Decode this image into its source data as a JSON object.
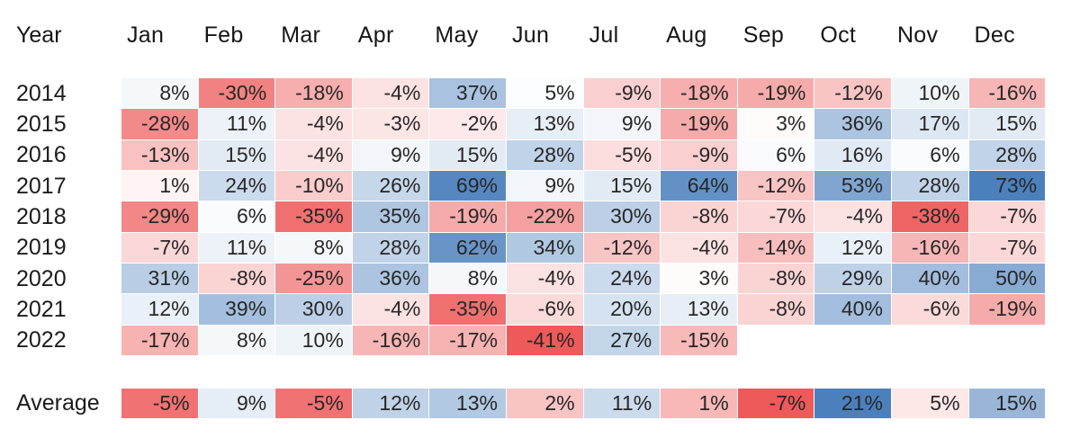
{
  "chart_data": {
    "type": "heatmap",
    "row_header_label": "Year",
    "columns": [
      "Jan",
      "Feb",
      "Mar",
      "Apr",
      "May",
      "Jun",
      "Jul",
      "Aug",
      "Sep",
      "Oct",
      "Nov",
      "Dec"
    ],
    "value_suffix": "%",
    "rows": [
      {
        "label": "2014",
        "values": [
          8,
          -30,
          -18,
          -4,
          37,
          5,
          -9,
          -18,
          -19,
          -12,
          10,
          -16
        ]
      },
      {
        "label": "2015",
        "values": [
          -28,
          11,
          -4,
          -3,
          -2,
          13,
          9,
          -19,
          3,
          36,
          17,
          15
        ]
      },
      {
        "label": "2016",
        "values": [
          -13,
          15,
          -4,
          9,
          15,
          28,
          -5,
          -9,
          6,
          16,
          6,
          28
        ]
      },
      {
        "label": "2017",
        "values": [
          1,
          24,
          -10,
          26,
          69,
          9,
          15,
          64,
          -12,
          53,
          28,
          73
        ]
      },
      {
        "label": "2018",
        "values": [
          -29,
          6,
          -35,
          35,
          -19,
          -22,
          30,
          -8,
          -7,
          -4,
          -38,
          -7
        ]
      },
      {
        "label": "2019",
        "values": [
          -7,
          11,
          8,
          28,
          62,
          34,
          -12,
          -4,
          -14,
          12,
          -16,
          -7
        ]
      },
      {
        "label": "2020",
        "values": [
          31,
          -8,
          -25,
          36,
          8,
          -4,
          24,
          3,
          -8,
          29,
          40,
          50
        ]
      },
      {
        "label": "2021",
        "values": [
          12,
          39,
          30,
          -4,
          -35,
          -6,
          20,
          13,
          -8,
          40,
          -6,
          -19
        ]
      },
      {
        "label": "2022",
        "values": [
          -17,
          8,
          10,
          -16,
          -17,
          -41,
          27,
          -15,
          null,
          null,
          null,
          null
        ]
      }
    ],
    "average_row": {
      "label": "Average",
      "values": [
        -5,
        9,
        -5,
        12,
        13,
        2,
        11,
        1,
        -7,
        21,
        5,
        15
      ]
    },
    "color_scale": {
      "negative_color": "#ee5a5a",
      "positive_color": "#4c80bd",
      "neutral_color": "#ffffff",
      "main": {
        "min": -41,
        "max": 73,
        "center": 4
      },
      "average": {
        "min": -7,
        "max": 21,
        "center": 7
      }
    },
    "layout": {
      "grid": "off",
      "legend": "none",
      "text_color": "#272727",
      "background": "#ffffff"
    }
  }
}
